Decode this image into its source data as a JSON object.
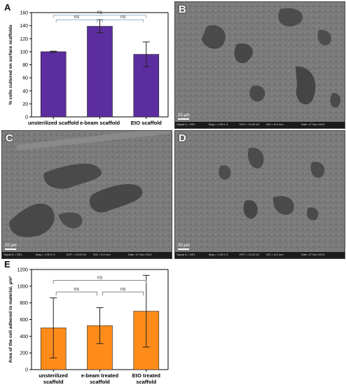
{
  "panels": {
    "A": "A",
    "B": "B",
    "C": "C",
    "D": "D",
    "E": "E"
  },
  "sem": {
    "scale_text": "20 μm",
    "footer": {
      "signal": "Signal A = SE1",
      "mag_b": "Mag = 1.00 K X",
      "mag_c": "Mag = 1.00 K X",
      "mag_d": "Mag = 1.00 K X",
      "eht": "EHT = 10.00 kV",
      "wd": "WD = 8.5 mm",
      "date": "Date :27 Nov 2013"
    }
  },
  "chart_data": [
    {
      "type": "bar",
      "panel": "A",
      "categories": [
        "unsterilized scaffold",
        "e-beam scaffold",
        "EtO scaffold"
      ],
      "values": [
        100,
        139,
        96
      ],
      "errors": [
        0.8,
        10,
        19
      ],
      "ylabel": "% cells cultured on surface scaffolds",
      "xlabel": "",
      "ylim": [
        0,
        160
      ],
      "yticks": [
        0,
        20,
        40,
        60,
        80,
        100,
        120,
        140,
        160
      ],
      "bar_color": "#5c2d9e",
      "significance": [
        {
          "from": 0,
          "to": 1,
          "label": "ns"
        },
        {
          "from": 1,
          "to": 2,
          "label": "ns"
        },
        {
          "from": 0,
          "to": 2,
          "label": "ns"
        }
      ],
      "grid": false
    },
    {
      "type": "bar",
      "panel": "E",
      "categories": [
        "unsterilized\nscaffold",
        "e-beam treated\nscaffold",
        "EtO treated\nscaffold"
      ],
      "values": [
        500,
        527,
        700
      ],
      "errors": [
        360,
        215,
        430
      ],
      "ylabel": "Area of the cell adhered to material, μm²",
      "xlabel": "",
      "ylim": [
        0,
        1200
      ],
      "yticks": [
        0,
        200,
        400,
        600,
        800,
        1000,
        1200
      ],
      "bar_color": "#ff8c1a",
      "significance": [
        {
          "from": 0,
          "to": 1,
          "label": "ns"
        },
        {
          "from": 1,
          "to": 2,
          "label": "ns"
        },
        {
          "from": 0,
          "to": 2,
          "label": "ns"
        }
      ],
      "grid": false
    }
  ]
}
